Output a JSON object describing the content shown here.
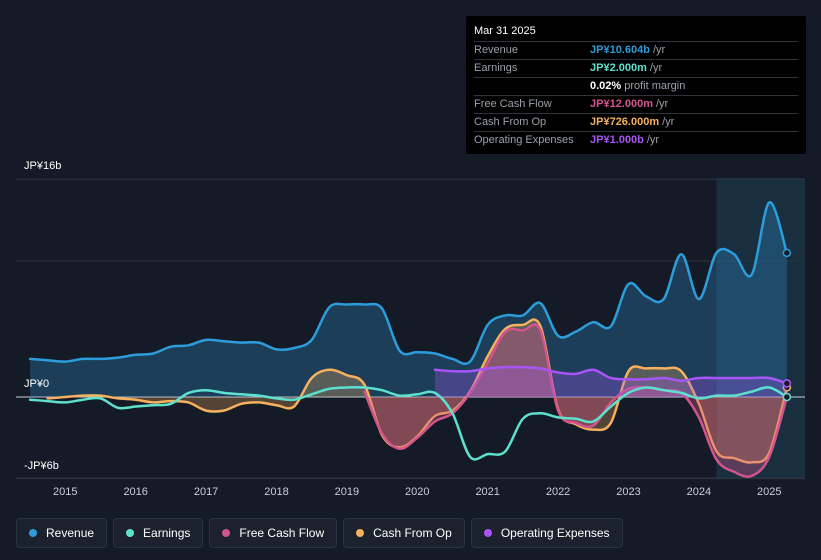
{
  "tooltip": {
    "date": "Mar 31 2025",
    "rows": [
      {
        "label": "Revenue",
        "value": "JP¥10.604b",
        "unit": "/yr",
        "color": "#2d9cdb"
      },
      {
        "label": "Earnings",
        "value": "JP¥2.000m",
        "unit": "/yr",
        "color": "#5ee0cf"
      },
      {
        "label": "",
        "value": "0.02%",
        "unit": "profit margin",
        "color": "#ffffff"
      },
      {
        "label": "Free Cash Flow",
        "value": "JP¥12.000m",
        "unit": "/yr",
        "color": "#d3548c"
      },
      {
        "label": "Cash From Op",
        "value": "JP¥726.000m",
        "unit": "/yr",
        "color": "#f5b15e"
      },
      {
        "label": "Operating Expenses",
        "value": "JP¥1.000b",
        "unit": "/yr",
        "color": "#a855f7"
      }
    ]
  },
  "axis": {
    "y_top": "JP¥16b",
    "y_zero": "JP¥0",
    "y_bottom": "-JP¥6b"
  },
  "legend": [
    {
      "label": "Revenue",
      "color": "#2d9cdb"
    },
    {
      "label": "Earnings",
      "color": "#5ee0cf"
    },
    {
      "label": "Free Cash Flow",
      "color": "#d3548c"
    },
    {
      "label": "Cash From Op",
      "color": "#f5b15e"
    },
    {
      "label": "Operating Expenses",
      "color": "#a855f7"
    }
  ],
  "chart_data": {
    "type": "area",
    "title": "",
    "unit": "JP¥b",
    "ylim": [
      -6,
      16
    ],
    "xlim": [
      2014.3,
      2025.25
    ],
    "x_ticks": [
      2015,
      2016,
      2017,
      2018,
      2019,
      2020,
      2021,
      2022,
      2023,
      2024,
      2025
    ],
    "x_tick_labels": [
      "2015",
      "2016",
      "2017",
      "2018",
      "2019",
      "2020",
      "2021",
      "2022",
      "2023",
      "2024",
      "2025"
    ],
    "y_ticks": [
      -6,
      0,
      10,
      16
    ],
    "highlight_from": 2024.25,
    "series": [
      {
        "name": "Revenue",
        "color": "#2d9cdb",
        "x": [
          2014.5,
          2014.75,
          2015.0,
          2015.25,
          2015.5,
          2015.75,
          2016.0,
          2016.25,
          2016.5,
          2016.75,
          2017.0,
          2017.25,
          2017.5,
          2017.75,
          2018.0,
          2018.25,
          2018.5,
          2018.75,
          2019.0,
          2019.25,
          2019.5,
          2019.75,
          2020.0,
          2020.25,
          2020.5,
          2020.75,
          2021.0,
          2021.25,
          2021.5,
          2021.75,
          2022.0,
          2022.25,
          2022.5,
          2022.75,
          2023.0,
          2023.25,
          2023.5,
          2023.75,
          2024.0,
          2024.25,
          2024.5,
          2024.75,
          2025.0,
          2025.25
        ],
        "values": [
          2.8,
          2.7,
          2.6,
          2.8,
          2.8,
          2.9,
          3.1,
          3.2,
          3.7,
          3.8,
          4.2,
          4.1,
          4.0,
          4.0,
          3.5,
          3.6,
          4.2,
          6.6,
          6.8,
          6.8,
          6.5,
          3.4,
          3.3,
          3.2,
          2.8,
          2.6,
          5.3,
          6.0,
          6.0,
          6.9,
          4.5,
          4.8,
          5.5,
          5.2,
          8.3,
          7.4,
          7.2,
          10.5,
          7.2,
          10.6,
          10.5,
          9.0,
          14.3,
          10.6
        ]
      },
      {
        "name": "Earnings",
        "color": "#5ee0cf",
        "x": [
          2014.5,
          2014.75,
          2015.0,
          2015.25,
          2015.5,
          2015.75,
          2016.0,
          2016.25,
          2016.5,
          2016.75,
          2017.0,
          2017.25,
          2017.5,
          2017.75,
          2018.0,
          2018.25,
          2018.5,
          2018.75,
          2019.0,
          2019.25,
          2019.5,
          2019.75,
          2020.0,
          2020.25,
          2020.5,
          2020.75,
          2021.0,
          2021.25,
          2021.5,
          2021.75,
          2022.0,
          2022.25,
          2022.5,
          2022.75,
          2023.0,
          2023.25,
          2023.5,
          2023.75,
          2024.0,
          2024.25,
          2024.5,
          2024.75,
          2025.0,
          2025.25
        ],
        "values": [
          -0.2,
          -0.3,
          -0.4,
          -0.2,
          -0.1,
          -0.8,
          -0.7,
          -0.6,
          -0.5,
          0.3,
          0.5,
          0.3,
          0.2,
          0.1,
          -0.1,
          -0.2,
          0.2,
          0.6,
          0.7,
          0.7,
          0.5,
          0.1,
          0.2,
          0.3,
          -1.2,
          -4.4,
          -4.2,
          -4.0,
          -1.6,
          -1.2,
          -1.5,
          -1.6,
          -1.8,
          -0.7,
          0.3,
          0.7,
          0.5,
          0.3,
          -0.1,
          0.1,
          0.1,
          0.4,
          0.7,
          0.0
        ]
      },
      {
        "name": "Free Cash Flow",
        "color": "#d3548c",
        "x": [
          2019.25,
          2019.5,
          2019.75,
          2020.0,
          2020.25,
          2020.5,
          2020.75,
          2021.0,
          2021.25,
          2021.5,
          2021.75,
          2022.0,
          2022.25,
          2022.5,
          2022.75,
          2023.0,
          2023.25,
          2023.5,
          2023.75,
          2024.0,
          2024.25,
          2024.5,
          2024.75,
          2025.0,
          2025.25
        ],
        "values": [
          0.4,
          -2.7,
          -3.8,
          -3.0,
          -1.8,
          -1.2,
          0.3,
          2.5,
          4.8,
          4.9,
          4.9,
          -1.0,
          -1.9,
          -2.1,
          -0.4,
          0.6,
          0.7,
          0.5,
          0.3,
          -1.5,
          -4.6,
          -5.5,
          -5.8,
          -4.4,
          0.0
        ]
      },
      {
        "name": "Cash From Op",
        "color": "#f5b15e",
        "x": [
          2014.75,
          2015.0,
          2015.25,
          2015.5,
          2015.75,
          2016.0,
          2016.25,
          2016.5,
          2016.75,
          2017.0,
          2017.25,
          2017.5,
          2017.75,
          2018.0,
          2018.25,
          2018.5,
          2018.75,
          2019.0,
          2019.25,
          2019.5,
          2019.75,
          2020.0,
          2020.25,
          2020.5,
          2020.75,
          2021.0,
          2021.25,
          2021.5,
          2021.75,
          2022.0,
          2022.25,
          2022.5,
          2022.75,
          2023.0,
          2023.25,
          2023.5,
          2023.75,
          2024.0,
          2024.25,
          2024.5,
          2024.75,
          2025.0,
          2025.25
        ],
        "values": [
          -0.1,
          0.0,
          0.1,
          0.1,
          -0.1,
          -0.2,
          -0.4,
          -0.3,
          -0.4,
          -1.0,
          -1.0,
          -0.5,
          -0.4,
          -0.6,
          -0.7,
          1.4,
          2.0,
          1.6,
          0.9,
          -2.8,
          -3.7,
          -2.9,
          -1.4,
          -1.0,
          0.4,
          3.0,
          5.0,
          5.3,
          5.2,
          -0.9,
          -2.0,
          -2.4,
          -1.9,
          1.9,
          2.1,
          2.1,
          1.9,
          -0.5,
          -4.0,
          -4.5,
          -4.8,
          -4.1,
          0.7
        ]
      },
      {
        "name": "Operating Expenses",
        "color": "#a855f7",
        "x": [
          2020.25,
          2020.5,
          2020.75,
          2021.0,
          2021.25,
          2021.5,
          2021.75,
          2022.0,
          2022.25,
          2022.5,
          2022.75,
          2023.0,
          2023.25,
          2023.5,
          2023.75,
          2024.0,
          2024.25,
          2024.5,
          2024.75,
          2025.0,
          2025.25
        ],
        "values": [
          2.0,
          1.9,
          1.9,
          2.1,
          2.2,
          2.2,
          2.1,
          1.8,
          1.7,
          2.0,
          1.4,
          1.3,
          1.3,
          1.4,
          1.2,
          1.4,
          1.4,
          1.4,
          1.4,
          1.4,
          1.0
        ]
      }
    ]
  }
}
